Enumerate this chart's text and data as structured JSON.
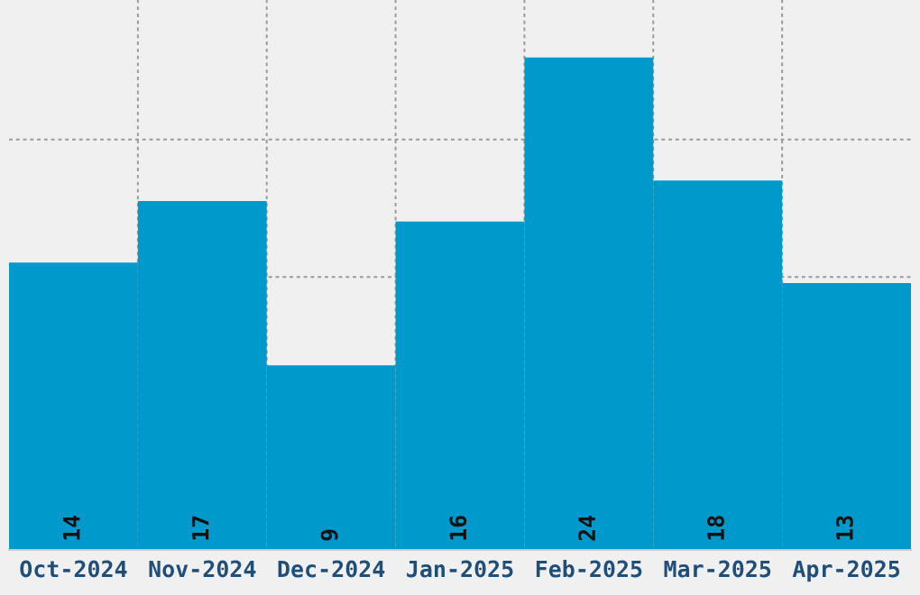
{
  "chart_data": {
    "type": "bar",
    "categories": [
      "Oct-2024",
      "Nov-2024",
      "Dec-2024",
      "Jan-2025",
      "Feb-2025",
      "Mar-2025",
      "Apr-2025"
    ],
    "values": [
      14,
      17,
      9,
      16,
      24,
      18,
      13
    ],
    "color": "#0099cc",
    "data_labels": true,
    "ylim": [
      0,
      26.8
    ],
    "yticks": [
      {
        "value": 6.7,
        "label": null
      },
      {
        "value": 13.3,
        "label": null
      },
      {
        "value": 20,
        "label": null
      }
    ],
    "tick_labels": "x",
    "grid": true
  }
}
